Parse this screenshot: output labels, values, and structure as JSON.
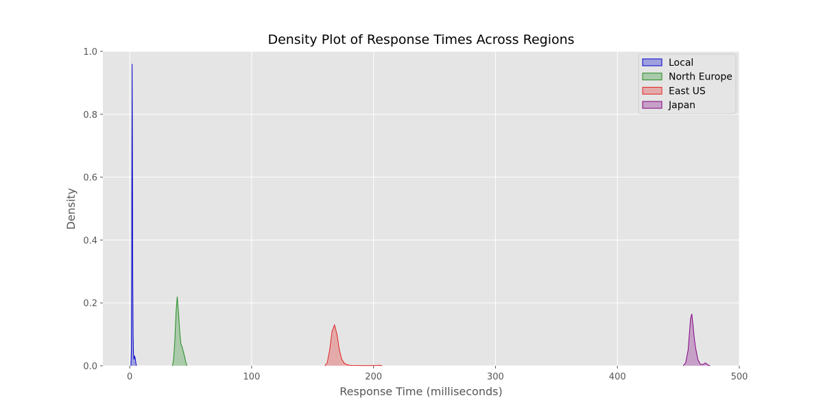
{
  "chart_data": {
    "type": "area",
    "title": "Density Plot of Response Times Across Regions",
    "xlabel": "Response Time (milliseconds)",
    "ylabel": "Density",
    "xlim": [
      -22,
      500
    ],
    "ylim": [
      0,
      1.0
    ],
    "xticks": [
      0,
      100,
      200,
      300,
      400,
      500
    ],
    "yticks": [
      0.0,
      0.2,
      0.4,
      0.6,
      0.8,
      1.0
    ],
    "xtick_labels": [
      "0",
      "100",
      "200",
      "300",
      "400",
      "500"
    ],
    "ytick_labels": [
      "0.0",
      "0.2",
      "0.4",
      "0.6",
      "0.8",
      "1.0"
    ],
    "grid": true,
    "legend_position": "top-right",
    "series": [
      {
        "name": "Local",
        "color": "#0000cc",
        "x": [
          1.0,
          1.4,
          1.7,
          2.0,
          2.2,
          2.5,
          2.8,
          3.1,
          3.5,
          4.0,
          4.5,
          5.0,
          5.5
        ],
        "y": [
          0.0,
          0.05,
          0.45,
          0.96,
          0.7,
          0.28,
          0.1,
          0.04,
          0.02,
          0.03,
          0.025,
          0.01,
          0.0
        ]
      },
      {
        "name": "North Europe",
        "color": "#228b22",
        "x": [
          35,
          36,
          37,
          38,
          39,
          40,
          41,
          42,
          43,
          44,
          45,
          46,
          47
        ],
        "y": [
          0.0,
          0.02,
          0.08,
          0.17,
          0.22,
          0.17,
          0.11,
          0.07,
          0.06,
          0.045,
          0.03,
          0.012,
          0.0
        ]
      },
      {
        "name": "East US",
        "color": "#e02020",
        "x": [
          160,
          162,
          164,
          166,
          168,
          170,
          172,
          174,
          176,
          178,
          180,
          182,
          195,
          203,
          205,
          207
        ],
        "y": [
          0.0,
          0.01,
          0.05,
          0.11,
          0.13,
          0.1,
          0.05,
          0.02,
          0.008,
          0.004,
          0.002,
          0.001,
          0.0005,
          0.001,
          0.002,
          0.0
        ]
      },
      {
        "name": "Japan",
        "color": "#800080",
        "x": [
          454,
          456,
          458,
          459,
          460,
          461,
          462,
          463,
          464,
          465,
          466,
          468,
          470,
          471,
          472,
          473,
          474,
          476
        ],
        "y": [
          0.0,
          0.01,
          0.05,
          0.1,
          0.15,
          0.165,
          0.13,
          0.09,
          0.06,
          0.04,
          0.02,
          0.005,
          0.004,
          0.006,
          0.009,
          0.007,
          0.003,
          0.0
        ]
      }
    ]
  }
}
